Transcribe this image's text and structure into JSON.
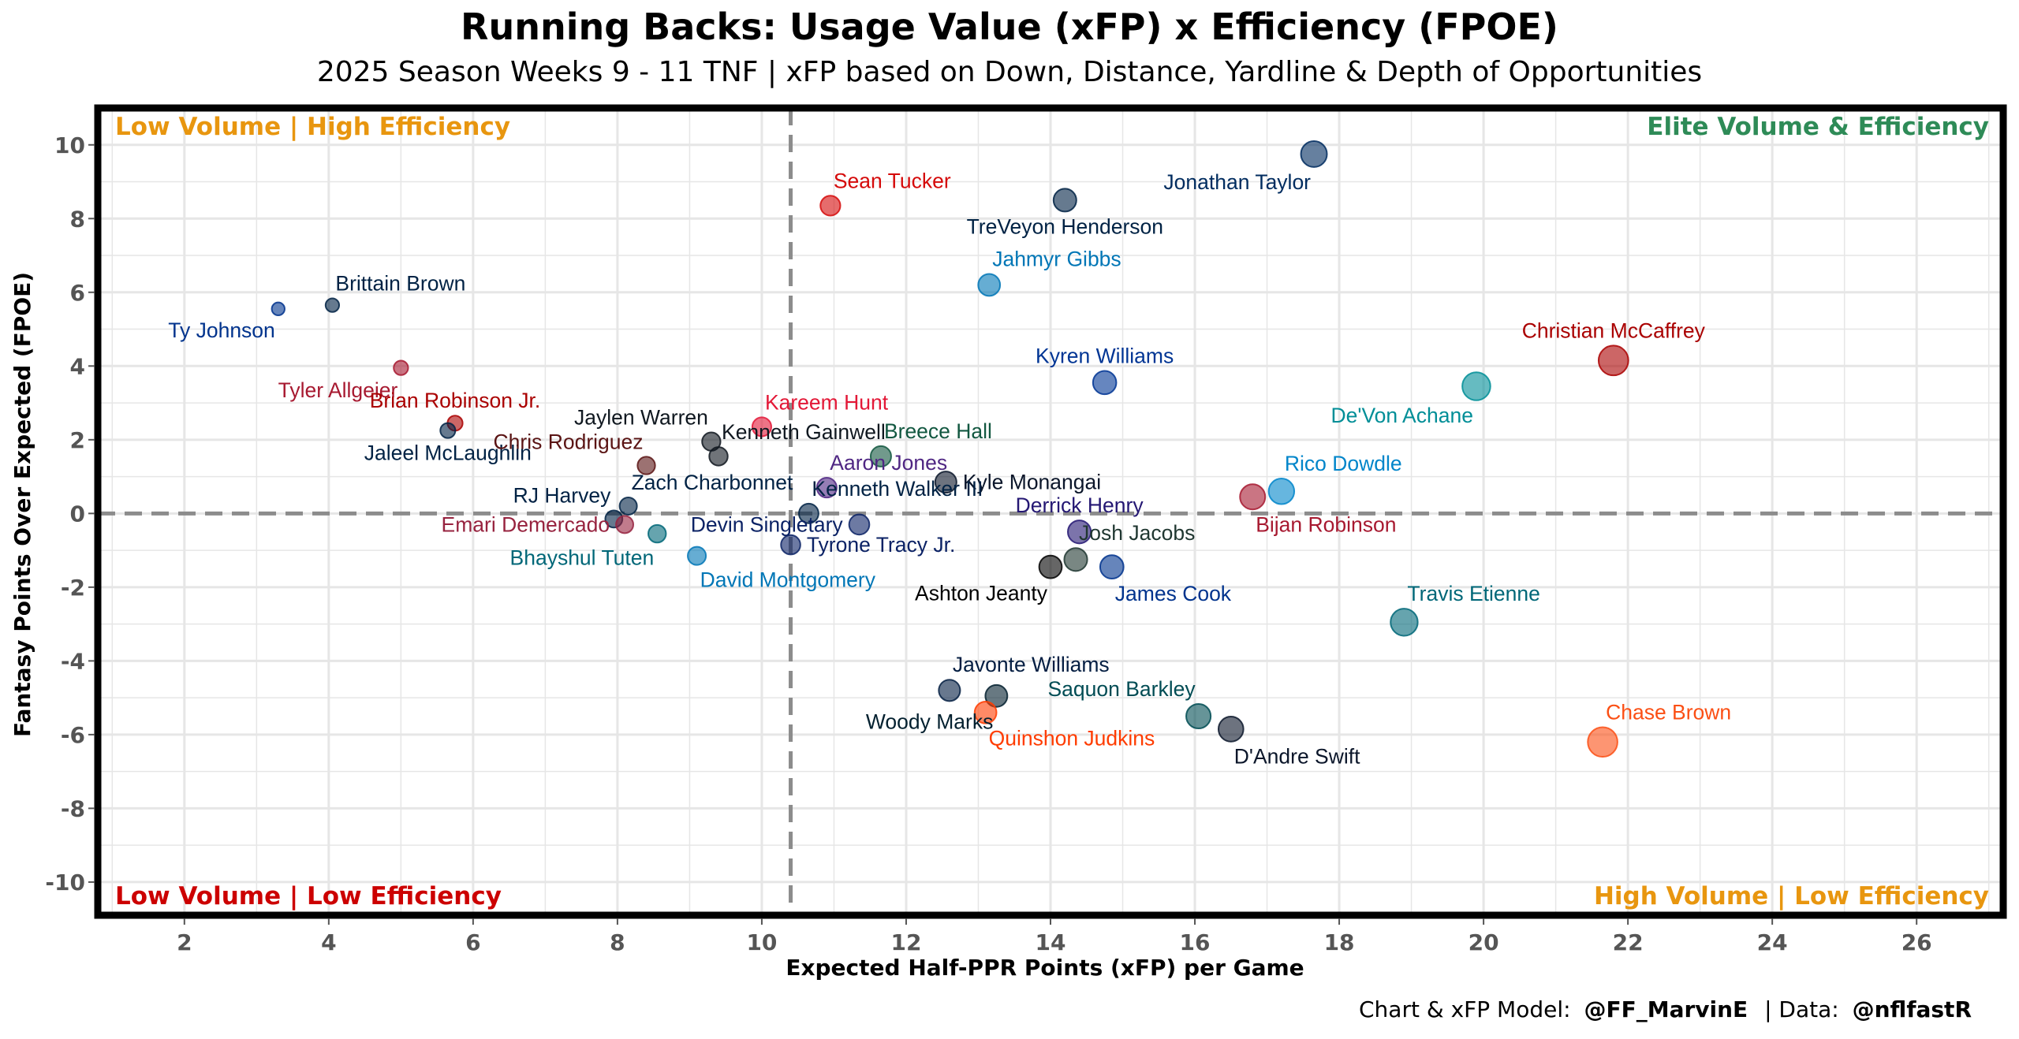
{
  "header": {
    "title": "Running Backs: Usage Value (xFP) x Efficiency (FPOE)",
    "subtitle": "2025 Season Weeks 9 - 11 TNF | xFP based on Down, Distance, Yardline & Depth of Opportunities"
  },
  "footer": {
    "credit_prefix": "Chart & xFP Model:",
    "credit_handle": "@FF_MarvinE",
    "credit_sep": "| Data:",
    "credit_source": "@nflfastR"
  },
  "colors": {
    "elite": "#2e8b57",
    "orange": "#e8960f",
    "red": "#cc0000",
    "grid": "#e6e6e6",
    "reference_line": "#8c8c8c"
  },
  "chart_data": {
    "type": "scatter",
    "xlabel": "Expected Half-PPR Points (xFP) per Game",
    "ylabel": "Fantasy Points Over Expected (FPOE)",
    "xlim": [
      0.8,
      27.2
    ],
    "ylim": [
      -10.9,
      11.0
    ],
    "x_ticks": [
      2,
      4,
      6,
      8,
      10,
      12,
      14,
      16,
      18,
      20,
      22,
      24,
      26
    ],
    "y_ticks": [
      -10,
      -8,
      -6,
      -4,
      -2,
      0,
      2,
      4,
      6,
      8,
      10
    ],
    "grid": true,
    "reference_lines": {
      "x": 10.4,
      "y": 0
    },
    "quadrant_labels": {
      "top_left": "Low Volume | High Efficiency",
      "top_right": "Elite Volume & Efficiency",
      "bottom_left": "Low Volume | Low Efficiency",
      "bottom_right": "High Volume | Low Efficiency"
    },
    "points": [
      {
        "name": "Jonathan Taylor",
        "x": 17.65,
        "y": 9.75,
        "color": "#002c5f",
        "label_pos": "below-left"
      },
      {
        "name": "Sean Tucker",
        "x": 10.95,
        "y": 8.35,
        "color": "#d50a0a",
        "label_pos": "above-right"
      },
      {
        "name": "TreVeyon Henderson",
        "x": 14.2,
        "y": 8.5,
        "color": "#002244",
        "label_pos": "below"
      },
      {
        "name": "Jahmyr Gibbs",
        "x": 13.15,
        "y": 6.2,
        "color": "#0076b6",
        "label_pos": "above-right"
      },
      {
        "name": "Brittain Brown",
        "x": 4.05,
        "y": 5.65,
        "color": "#002244",
        "label_pos": "above-right"
      },
      {
        "name": "Ty Johnson",
        "x": 3.3,
        "y": 5.55,
        "color": "#00338d",
        "label_pos": "below-left"
      },
      {
        "name": "Christian McCaffrey",
        "x": 21.8,
        "y": 4.15,
        "color": "#aa0000",
        "label_pos": "above"
      },
      {
        "name": "Tyler Allgeier",
        "x": 5.0,
        "y": 3.95,
        "color": "#a71930",
        "label_pos": "below-left"
      },
      {
        "name": "Kyren Williams",
        "x": 14.75,
        "y": 3.55,
        "color": "#003594",
        "label_pos": "above"
      },
      {
        "name": "De'Von Achane",
        "x": 19.9,
        "y": 3.45,
        "color": "#008e97",
        "label_pos": "below-left"
      },
      {
        "name": "Brian Robinson Jr.",
        "x": 5.75,
        "y": 2.45,
        "color": "#aa0000",
        "label_pos": "above"
      },
      {
        "name": "Kareem Hunt",
        "x": 10.0,
        "y": 2.35,
        "color": "#e31837",
        "label_pos": "above-right"
      },
      {
        "name": "Jaleel McLaughlin",
        "x": 5.65,
        "y": 2.25,
        "color": "#002244",
        "label_pos": "below"
      },
      {
        "name": "Jaylen Warren",
        "x": 9.3,
        "y": 1.95,
        "color": "#101820",
        "label_pos": "above-left"
      },
      {
        "name": "Kenneth Gainwell",
        "x": 9.4,
        "y": 1.55,
        "color": "#101820",
        "label_pos": "above-right"
      },
      {
        "name": "Breece Hall",
        "x": 11.65,
        "y": 1.55,
        "color": "#125740",
        "label_pos": "above-right"
      },
      {
        "name": "Chris Rodriguez",
        "x": 8.4,
        "y": 1.3,
        "color": "#5a1414",
        "label_pos": "above-left"
      },
      {
        "name": "Aaron Jones",
        "x": 10.9,
        "y": 0.7,
        "color": "#4f2683",
        "label_pos": "above-right"
      },
      {
        "name": "Kyle Monangai",
        "x": 12.55,
        "y": 0.85,
        "color": "#0b162a",
        "label_pos": "right"
      },
      {
        "name": "Rico Dowdle",
        "x": 17.2,
        "y": 0.6,
        "color": "#0085ca",
        "label_pos": "above-right"
      },
      {
        "name": "Bijan Robinson",
        "x": 16.8,
        "y": 0.45,
        "color": "#a71930",
        "label_pos": "below-right"
      },
      {
        "name": "Zach Charbonnet",
        "x": 8.15,
        "y": 0.2,
        "color": "#002244",
        "label_pos": "above-right"
      },
      {
        "name": "Kenneth Walker III",
        "x": 10.65,
        "y": 0.0,
        "color": "#002244",
        "label_pos": "above-right"
      },
      {
        "name": "RJ Harvey",
        "x": 7.95,
        "y": -0.15,
        "color": "#002244",
        "label_pos": "above-left"
      },
      {
        "name": "Devin Singletary",
        "x": 11.35,
        "y": -0.3,
        "color": "#0b2265",
        "label_pos": "left"
      },
      {
        "name": "Emari Demercado",
        "x": 8.1,
        "y": -0.3,
        "color": "#97233f",
        "label_pos": "left"
      },
      {
        "name": "Derrick Henry",
        "x": 14.4,
        "y": -0.5,
        "color": "#241773",
        "label_pos": "above"
      },
      {
        "name": "Bhayshul Tuten",
        "x": 8.55,
        "y": -0.55,
        "color": "#006778",
        "label_pos": "below-left"
      },
      {
        "name": "Tyrone Tracy Jr.",
        "x": 10.4,
        "y": -0.85,
        "color": "#0b2265",
        "label_pos": "right"
      },
      {
        "name": "David Montgomery",
        "x": 9.1,
        "y": -1.15,
        "color": "#0076b6",
        "label_pos": "below-right"
      },
      {
        "name": "Josh Jacobs",
        "x": 14.35,
        "y": -1.25,
        "color": "#203731",
        "label_pos": "above-right"
      },
      {
        "name": "Ashton Jeanty",
        "x": 14.0,
        "y": -1.45,
        "color": "#000000",
        "label_pos": "below-left"
      },
      {
        "name": "James Cook",
        "x": 14.85,
        "y": -1.45,
        "color": "#00338d",
        "label_pos": "below-right"
      },
      {
        "name": "Travis Etienne",
        "x": 18.9,
        "y": -2.95,
        "color": "#006778",
        "label_pos": "above-right"
      },
      {
        "name": "Javonte Williams",
        "x": 12.6,
        "y": -4.8,
        "color": "#041e42",
        "label_pos": "above-right"
      },
      {
        "name": "Woody Marks",
        "x": 13.25,
        "y": -4.95,
        "color": "#03202f",
        "label_pos": "below-left"
      },
      {
        "name": "Quinshon Judkins",
        "x": 13.1,
        "y": -5.4,
        "color": "#ff3c00",
        "label_pos": "below-right"
      },
      {
        "name": "Saquon Barkley",
        "x": 16.05,
        "y": -5.5,
        "color": "#004c54",
        "label_pos": "above-left"
      },
      {
        "name": "D'Andre Swift",
        "x": 16.5,
        "y": -5.85,
        "color": "#0b162a",
        "label_pos": "below-right"
      },
      {
        "name": "Chase Brown",
        "x": 21.65,
        "y": -6.2,
        "color": "#fb4f14",
        "label_pos": "above-right"
      }
    ]
  }
}
